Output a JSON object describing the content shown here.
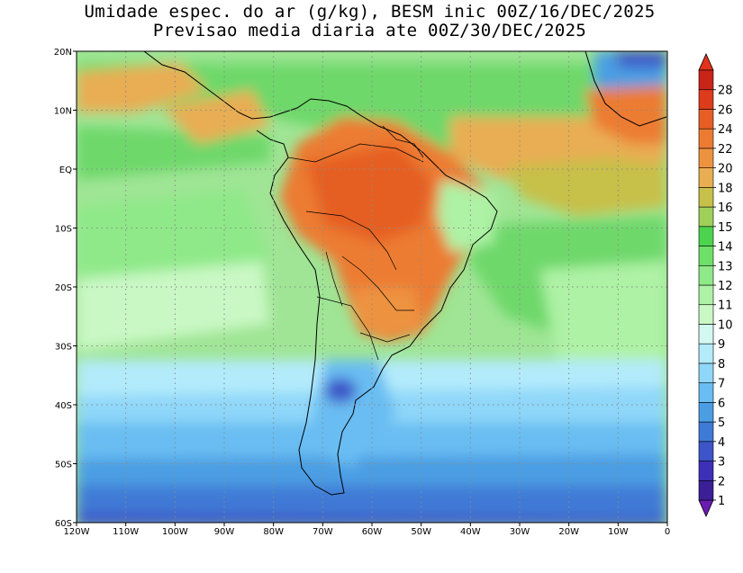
{
  "title": {
    "line1": "Umidade espec. do ar (g/kg), BESM inic 00Z/16/DEC/2025",
    "line2": "Previsao media diaria ate 00Z/30/DEC/2025"
  },
  "map": {
    "lon_range": [
      -120,
      0
    ],
    "lat_range": [
      -60,
      20
    ],
    "lon_ticks": [
      "120W",
      "110W",
      "100W",
      "90W",
      "80W",
      "70W",
      "60W",
      "50W",
      "40W",
      "30W",
      "20W",
      "10W",
      "0"
    ],
    "lat_ticks": [
      "20N",
      "10N",
      "EQ",
      "10S",
      "20S",
      "30S",
      "40S",
      "50S",
      "60S"
    ],
    "gridlines": "dotted",
    "variable": "specific humidity (g/kg)"
  },
  "colorbar": {
    "levels": [
      "1",
      "2",
      "3",
      "4",
      "5",
      "6",
      "7",
      "8",
      "9",
      "10",
      "11",
      "12",
      "13",
      "14",
      "15",
      "16",
      "18",
      "20",
      "22",
      "24",
      "26",
      "28"
    ],
    "colors": [
      "#3a1f96",
      "#3d2fb8",
      "#3d55c8",
      "#3f7ad6",
      "#4c9ee3",
      "#69bdf2",
      "#8fd7f9",
      "#b3ebfb",
      "#d3f7f1",
      "#c9f8c4",
      "#aef2a5",
      "#8fe988",
      "#6ee06a",
      "#4cd44e",
      "#9ed05a",
      "#c7c04a",
      "#e9ad52",
      "#ed9340",
      "#ec7b31",
      "#e65e24",
      "#dc3b1c",
      "#c92418"
    ],
    "under_color": "#6a1bb0",
    "over_color": "#e2321b"
  }
}
